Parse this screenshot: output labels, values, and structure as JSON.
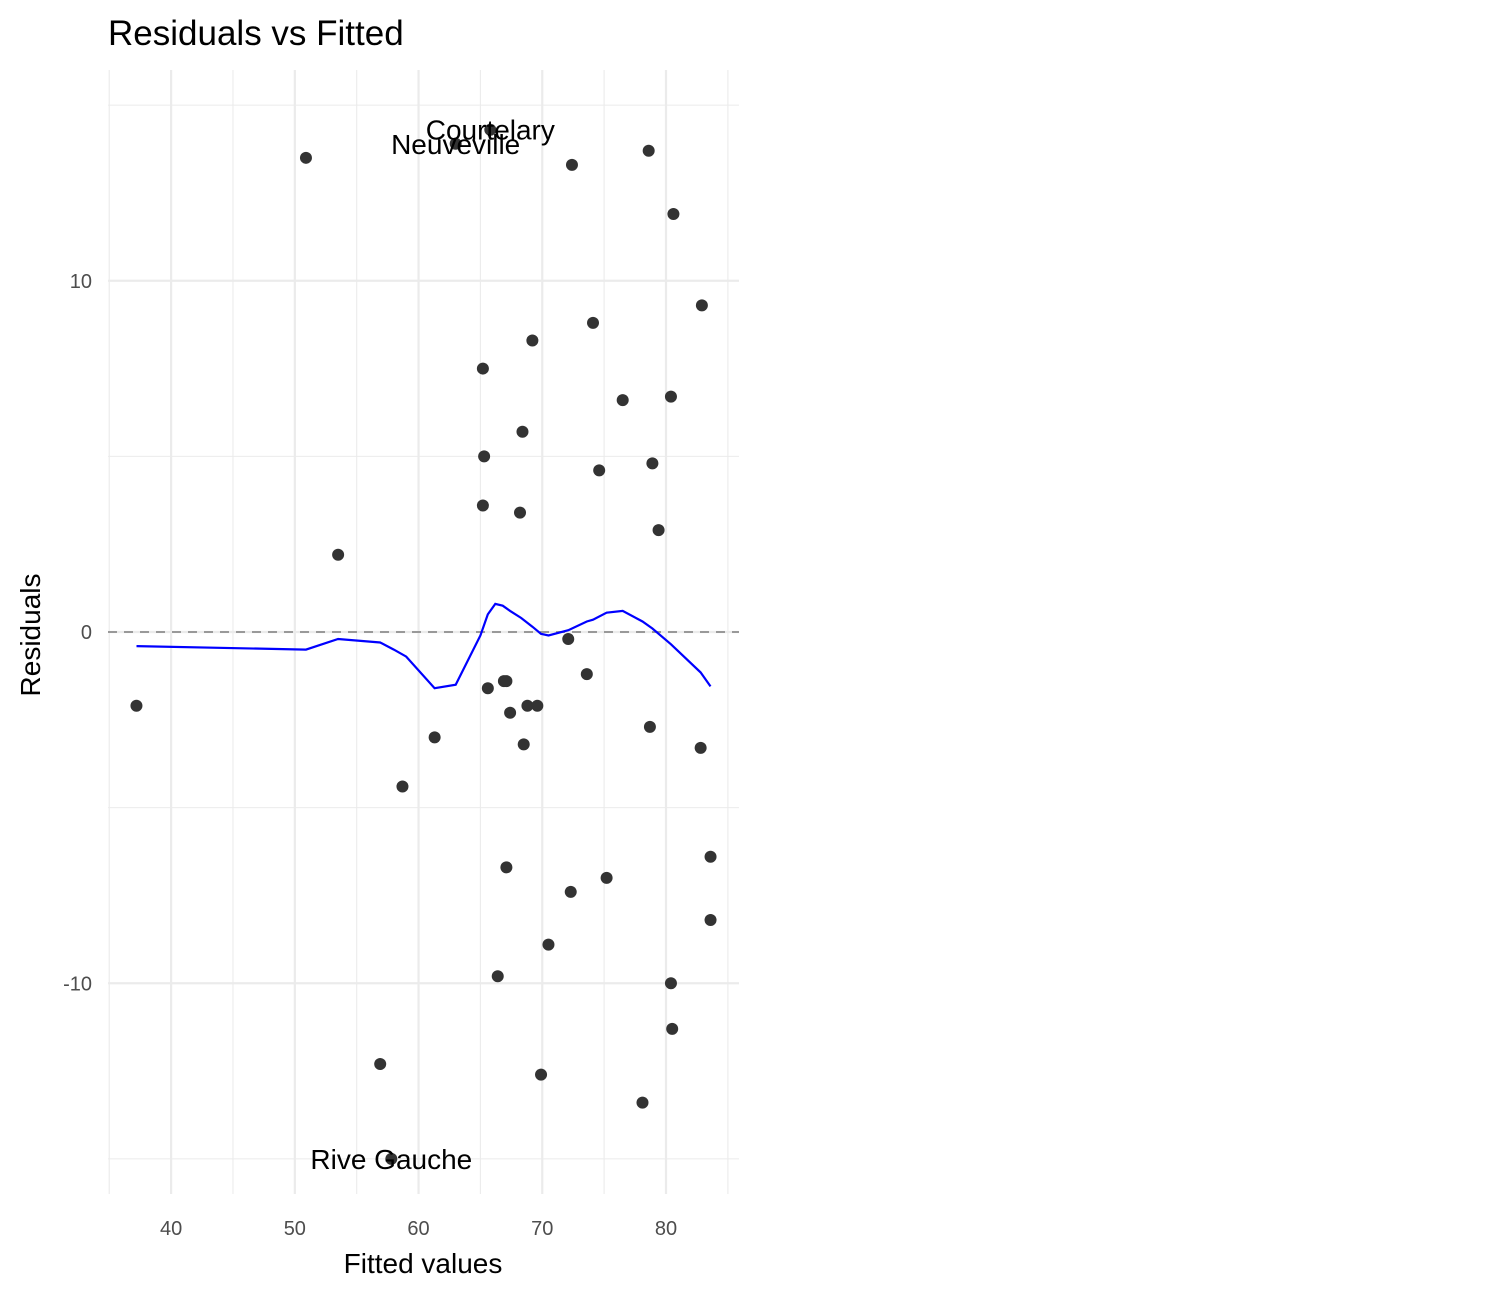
{
  "chart_data": {
    "type": "scatter",
    "title": "Residuals vs Fitted",
    "xlabel": "Fitted values",
    "ylabel": "Residuals",
    "xlim": [
      34.9,
      85.9
    ],
    "ylim": [
      -16.0,
      16.0
    ],
    "x_ticks": [
      40,
      50,
      60,
      70,
      80
    ],
    "y_ticks": [
      -10,
      0,
      10
    ],
    "x_tick_labels": [
      "40",
      "50",
      "60",
      "70",
      "80"
    ],
    "y_tick_labels": [
      "-10",
      "0",
      "10"
    ],
    "grid": true,
    "reference_line": 0,
    "colors": {
      "points": "#333333",
      "smooth": "#0000ff",
      "reference": "#999999",
      "grid": "#ebebeb"
    },
    "points": [
      {
        "x": 37.2,
        "y": -2.1
      },
      {
        "x": 50.9,
        "y": 13.5
      },
      {
        "x": 53.5,
        "y": 2.2
      },
      {
        "x": 56.9,
        "y": -12.3
      },
      {
        "x": 57.8,
        "y": -15.0
      },
      {
        "x": 58.7,
        "y": -4.4
      },
      {
        "x": 61.3,
        "y": -3.0
      },
      {
        "x": 63.0,
        "y": 13.9
      },
      {
        "x": 65.2,
        "y": 7.5
      },
      {
        "x": 65.2,
        "y": 3.6
      },
      {
        "x": 65.3,
        "y": 5.0
      },
      {
        "x": 65.6,
        "y": -1.6
      },
      {
        "x": 65.8,
        "y": 14.3
      },
      {
        "x": 66.4,
        "y": -9.8
      },
      {
        "x": 66.9,
        "y": -1.4
      },
      {
        "x": 67.1,
        "y": -1.4
      },
      {
        "x": 67.1,
        "y": -6.7
      },
      {
        "x": 67.4,
        "y": -2.3
      },
      {
        "x": 68.2,
        "y": 3.4
      },
      {
        "x": 68.4,
        "y": 5.7
      },
      {
        "x": 68.5,
        "y": -3.2
      },
      {
        "x": 68.8,
        "y": -2.1
      },
      {
        "x": 69.2,
        "y": 8.3
      },
      {
        "x": 69.6,
        "y": -2.1
      },
      {
        "x": 69.9,
        "y": -12.6
      },
      {
        "x": 70.5,
        "y": -8.9
      },
      {
        "x": 72.1,
        "y": -0.2
      },
      {
        "x": 72.3,
        "y": -7.4
      },
      {
        "x": 72.4,
        "y": 13.3
      },
      {
        "x": 73.6,
        "y": -1.2
      },
      {
        "x": 74.1,
        "y": 8.8
      },
      {
        "x": 74.6,
        "y": 4.6
      },
      {
        "x": 75.2,
        "y": -7.0
      },
      {
        "x": 76.5,
        "y": 6.6
      },
      {
        "x": 78.1,
        "y": -13.4
      },
      {
        "x": 78.6,
        "y": 13.7
      },
      {
        "x": 78.7,
        "y": -2.7
      },
      {
        "x": 78.9,
        "y": 4.8
      },
      {
        "x": 79.4,
        "y": 2.9
      },
      {
        "x": 80.4,
        "y": 6.7
      },
      {
        "x": 80.4,
        "y": -10.0
      },
      {
        "x": 80.5,
        "y": -11.3
      },
      {
        "x": 80.6,
        "y": 11.9
      },
      {
        "x": 82.8,
        "y": -3.3
      },
      {
        "x": 82.9,
        "y": 9.3
      },
      {
        "x": 83.6,
        "y": -6.4
      },
      {
        "x": 83.6,
        "y": -8.2
      }
    ],
    "labels": [
      {
        "text": "Courtelary",
        "x": 65.8,
        "y": 14.3
      },
      {
        "text": "Neuveville",
        "x": 63.0,
        "y": 13.9
      },
      {
        "text": "Rive Gauche",
        "x": 57.8,
        "y": -15.0
      }
    ],
    "smooth_line": [
      {
        "x": 37.2,
        "y": -0.4
      },
      {
        "x": 50.9,
        "y": -0.5
      },
      {
        "x": 53.5,
        "y": -0.2
      },
      {
        "x": 56.9,
        "y": -0.3
      },
      {
        "x": 58.0,
        "y": -0.5
      },
      {
        "x": 59.0,
        "y": -0.7
      },
      {
        "x": 61.3,
        "y": -1.6
      },
      {
        "x": 63.0,
        "y": -1.5
      },
      {
        "x": 65.0,
        "y": -0.1
      },
      {
        "x": 65.6,
        "y": 0.5
      },
      {
        "x": 66.2,
        "y": 0.8
      },
      {
        "x": 66.8,
        "y": 0.75
      },
      {
        "x": 67.4,
        "y": 0.6
      },
      {
        "x": 68.3,
        "y": 0.4
      },
      {
        "x": 69.2,
        "y": 0.15
      },
      {
        "x": 69.9,
        "y": -0.05
      },
      {
        "x": 70.5,
        "y": -0.1
      },
      {
        "x": 72.1,
        "y": 0.05
      },
      {
        "x": 73.6,
        "y": 0.3
      },
      {
        "x": 74.1,
        "y": 0.35
      },
      {
        "x": 75.2,
        "y": 0.55
      },
      {
        "x": 76.5,
        "y": 0.6
      },
      {
        "x": 78.1,
        "y": 0.3
      },
      {
        "x": 78.9,
        "y": 0.1
      },
      {
        "x": 80.4,
        "y": -0.35
      },
      {
        "x": 82.8,
        "y": -1.15
      },
      {
        "x": 83.6,
        "y": -1.55
      }
    ]
  }
}
